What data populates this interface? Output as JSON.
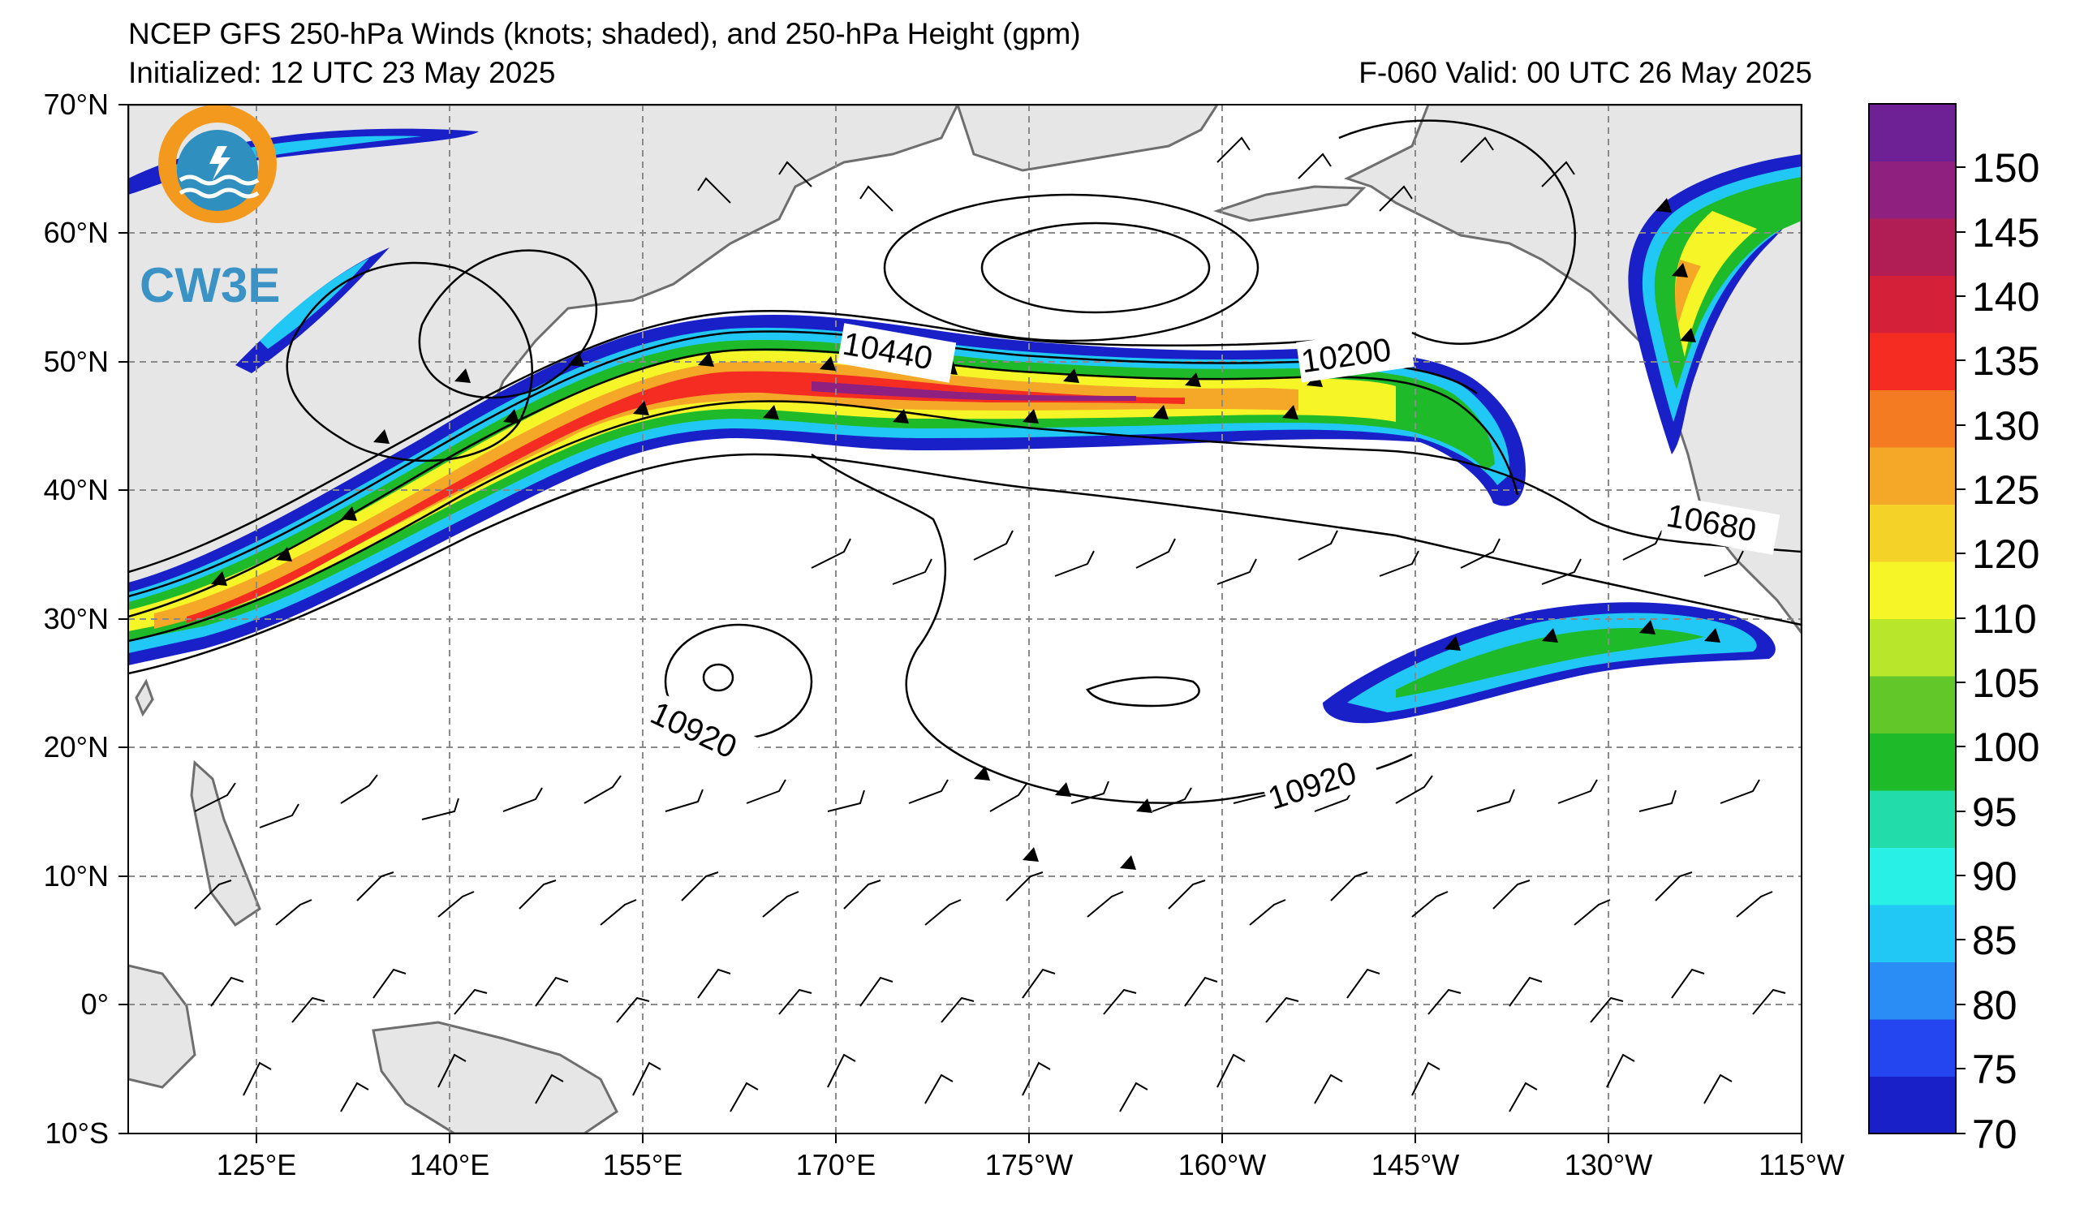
{
  "header": {
    "title": "NCEP GFS 250-hPa Winds (knots; shaded), and 250-hPa Height (gpm)",
    "initialized": "Initialized: 12 UTC 23 May 2025",
    "valid": "F-060  Valid: 00 UTC 26 May 2025"
  },
  "logo": {
    "text": "CW3E",
    "colors": {
      "ring": "#f39a1e",
      "wave": "#2f8fbf",
      "text": "#3a93c4"
    }
  },
  "axes": {
    "lat_labels": [
      "70°N",
      "60°N",
      "50°N",
      "40°N",
      "30°N",
      "20°N",
      "10°N",
      "0°",
      "10°S"
    ],
    "lon_labels": [
      "125°E",
      "140°E",
      "155°E",
      "170°E",
      "175°W",
      "160°W",
      "145°W",
      "130°W",
      "115°W"
    ]
  },
  "colorbar": {
    "ticks": [
      "150",
      "145",
      "140",
      "135",
      "130",
      "125",
      "120",
      "110",
      "105",
      "100",
      "95",
      "90",
      "85",
      "80",
      "75",
      "70"
    ],
    "colors": [
      "#1a20c8",
      "#2446f0",
      "#2a8cf5",
      "#22c8f5",
      "#28f0e6",
      "#22dcaa",
      "#1fba2a",
      "#62c82a",
      "#b8e62a",
      "#f5f528",
      "#f5d228",
      "#f5a828",
      "#f57b22",
      "#f52c22",
      "#d42038",
      "#b01e55",
      "#902080",
      "#6e2095"
    ]
  },
  "contour_labels": [
    "10440",
    "10200",
    "10680",
    "10920",
    "10920"
  ],
  "colors": {
    "land": "#e6e6e6",
    "coast": "#6e6e6e",
    "grid": "#8a8a8a",
    "contour": "#000000"
  }
}
